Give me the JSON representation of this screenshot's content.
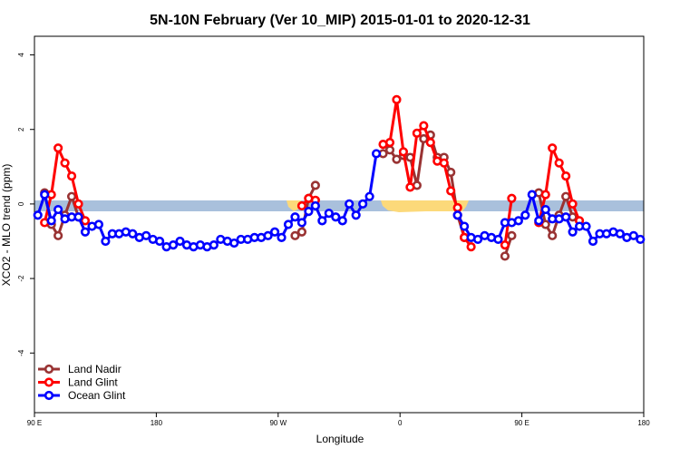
{
  "chart_data": {
    "type": "line",
    "title": "5N-10N February (Ver 10_MIP)   2015-01-01 to 2020-12-31",
    "xlabel": "Longitude",
    "ylabel": "XCO2 - MLO trend (ppm)",
    "x": [
      92.5,
      97.5,
      102.5,
      107.5,
      112.5,
      117.5,
      122.5,
      127.5,
      132.5,
      137.5,
      142.5,
      147.5,
      152.5,
      157.5,
      162.5,
      167.5,
      172.5,
      177.5,
      182.5,
      187.5,
      192.5,
      197.5,
      202.5,
      207.5,
      212.5,
      217.5,
      222.5,
      227.5,
      232.5,
      237.5,
      242.5,
      247.5,
      252.5,
      257.5,
      262.5,
      267.5,
      272.5,
      277.5,
      282.5,
      287.5,
      292.5,
      297.5,
      302.5,
      307.5,
      312.5,
      317.5,
      322.5,
      327.5,
      332.5,
      337.5,
      342.5,
      347.5,
      352.5,
      357.5,
      362.5,
      367.5,
      372.5,
      377.5,
      382.5,
      387.5,
      392.5,
      397.5,
      402.5,
      407.5,
      412.5,
      417.5,
      422.5,
      427.5,
      432.5,
      437.5,
      442.5,
      447.5,
      452.5,
      457.5,
      462.5,
      467.5,
      472.5,
      477.5,
      482.5,
      487.5,
      492.5,
      497.5,
      502.5,
      507.5,
      512.5,
      517.5,
      522.5,
      527.5,
      532.5,
      537.5
    ],
    "series": [
      {
        "name": "Land Nadir",
        "color": "#993333",
        "values": [
          null,
          0.3,
          -0.55,
          -0.85,
          -0.3,
          0.2,
          -0.35,
          null,
          null,
          null,
          null,
          null,
          null,
          null,
          null,
          null,
          null,
          null,
          null,
          null,
          null,
          null,
          null,
          null,
          null,
          null,
          null,
          null,
          null,
          null,
          null,
          null,
          null,
          null,
          null,
          null,
          null,
          null,
          -0.85,
          -0.75,
          0.15,
          0.5,
          null,
          null,
          null,
          null,
          null,
          null,
          null,
          null,
          null,
          1.35,
          1.45,
          1.2,
          1.3,
          1.25,
          0.5,
          1.75,
          1.85,
          1.25,
          1.25,
          0.85,
          -0.3,
          -0.9,
          null,
          null,
          null,
          null,
          null,
          -1.4,
          -0.85,
          null,
          null,
          null,
          0.3,
          -0.55,
          -0.85,
          -0.3,
          0.2,
          -0.35,
          null,
          null,
          null,
          null,
          null,
          null,
          null,
          null,
          null,
          null
        ]
      },
      {
        "name": "Land Glint",
        "color": "#ff0000",
        "values": [
          null,
          -0.5,
          0.25,
          1.5,
          1.1,
          0.75,
          0.0,
          -0.45,
          null,
          null,
          null,
          null,
          null,
          null,
          null,
          null,
          null,
          null,
          null,
          null,
          null,
          null,
          null,
          null,
          null,
          null,
          null,
          null,
          null,
          null,
          null,
          null,
          null,
          null,
          null,
          null,
          null,
          null,
          null,
          -0.05,
          0.15,
          0.1,
          null,
          null,
          null,
          null,
          null,
          null,
          null,
          null,
          null,
          1.6,
          1.65,
          2.8,
          1.4,
          0.45,
          1.9,
          2.1,
          1.65,
          1.15,
          1.1,
          0.35,
          -0.1,
          -0.9,
          -1.15,
          null,
          null,
          null,
          null,
          -1.1,
          0.15,
          null,
          null,
          null,
          -0.5,
          0.25,
          1.5,
          1.1,
          0.75,
          0.0,
          -0.45,
          null,
          null,
          null,
          null,
          null,
          null,
          null,
          null,
          null
        ]
      },
      {
        "name": "Ocean Glint",
        "color": "#0000ff",
        "values": [
          -0.3,
          0.25,
          -0.45,
          -0.15,
          -0.4,
          -0.35,
          -0.35,
          -0.75,
          -0.6,
          -0.55,
          -1.0,
          -0.8,
          -0.8,
          -0.75,
          -0.8,
          -0.9,
          -0.85,
          -0.95,
          -1.0,
          -1.15,
          -1.1,
          -1.0,
          -1.1,
          -1.15,
          -1.1,
          -1.15,
          -1.1,
          -0.95,
          -1.0,
          -1.05,
          -0.95,
          -0.95,
          -0.9,
          -0.9,
          -0.85,
          -0.75,
          -0.9,
          -0.55,
          -0.35,
          -0.5,
          -0.2,
          -0.05,
          -0.45,
          -0.25,
          -0.35,
          -0.45,
          0.0,
          -0.3,
          0.0,
          0.2,
          1.35,
          null,
          null,
          null,
          null,
          null,
          null,
          null,
          null,
          null,
          null,
          null,
          -0.3,
          -0.6,
          -0.9,
          -0.95,
          -0.85,
          -0.9,
          -0.95,
          -0.5,
          -0.5,
          -0.45,
          -0.3,
          0.25,
          -0.45,
          -0.15,
          -0.4,
          -0.4,
          -0.35,
          -0.75,
          -0.6,
          -0.6,
          -1.0,
          -0.8,
          -0.8,
          -0.75,
          -0.8,
          -0.9,
          -0.85,
          -0.95
        ]
      }
    ],
    "xlim": [
      90,
      540
    ],
    "xticks": [
      {
        "value": 90,
        "label": "90 E"
      },
      {
        "value": 180,
        "label": "180"
      },
      {
        "value": 270,
        "label": "90 W"
      },
      {
        "value": 360,
        "label": "0"
      },
      {
        "value": 450,
        "label": "90 E"
      },
      {
        "value": 540,
        "label": "180"
      }
    ],
    "ylim": [
      -5.6,
      4.5
    ],
    "yticks": [
      -4,
      -2,
      0,
      2,
      4
    ],
    "legend": "bottom-left"
  }
}
